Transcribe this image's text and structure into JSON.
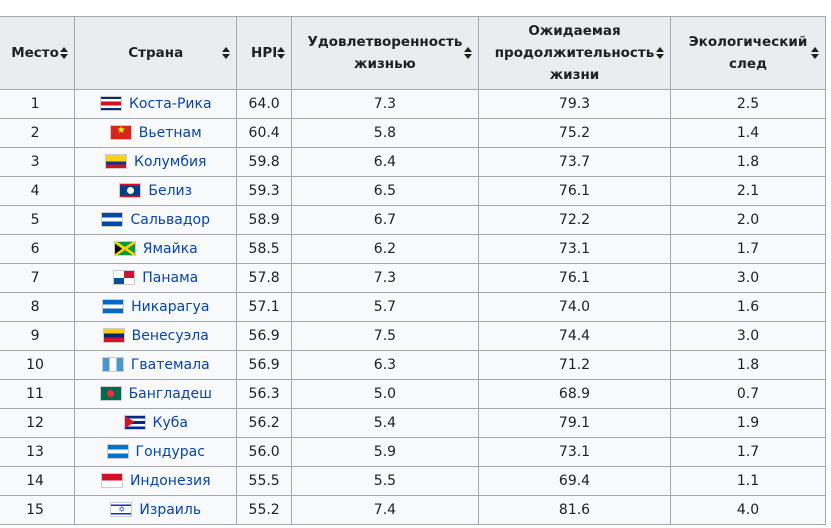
{
  "table": {
    "headers": {
      "rank": "Место",
      "country": "Страна",
      "hpi": "HPI",
      "satisfaction_1": "Удовлетворенность",
      "satisfaction_2": "жизнью",
      "life_exp_1": "Ожидаемая",
      "life_exp_2": "продолжительность",
      "life_exp_3": "жизни",
      "footprint_1": "Экологический",
      "footprint_2": "след"
    },
    "rows": [
      {
        "rank": "1",
        "flag": "costa-rica-flag-icon",
        "country": "Коста-Рика",
        "hpi": "64.0",
        "satisfaction": "7.3",
        "life_expectancy": "79.3",
        "footprint": "2.5"
      },
      {
        "rank": "2",
        "flag": "vietnam-flag-icon",
        "country": "Вьетнам",
        "hpi": "60.4",
        "satisfaction": "5.8",
        "life_expectancy": "75.2",
        "footprint": "1.4"
      },
      {
        "rank": "3",
        "flag": "colombia-flag-icon",
        "country": "Колумбия",
        "hpi": "59.8",
        "satisfaction": "6.4",
        "life_expectancy": "73.7",
        "footprint": "1.8"
      },
      {
        "rank": "4",
        "flag": "belize-flag-icon",
        "country": "Белиз",
        "hpi": "59.3",
        "satisfaction": "6.5",
        "life_expectancy": "76.1",
        "footprint": "2.1"
      },
      {
        "rank": "5",
        "flag": "el-salvador-flag-icon",
        "country": "Сальвадор",
        "hpi": "58.9",
        "satisfaction": "6.7",
        "life_expectancy": "72.2",
        "footprint": "2.0"
      },
      {
        "rank": "6",
        "flag": "jamaica-flag-icon",
        "country": "Ямайка",
        "hpi": "58.5",
        "satisfaction": "6.2",
        "life_expectancy": "73.1",
        "footprint": "1.7"
      },
      {
        "rank": "7",
        "flag": "panama-flag-icon",
        "country": "Панама",
        "hpi": "57.8",
        "satisfaction": "7.3",
        "life_expectancy": "76.1",
        "footprint": "3.0"
      },
      {
        "rank": "8",
        "flag": "nicaragua-flag-icon",
        "country": "Никарагуа",
        "hpi": "57.1",
        "satisfaction": "5.7",
        "life_expectancy": "74.0",
        "footprint": "1.6"
      },
      {
        "rank": "9",
        "flag": "venezuela-flag-icon",
        "country": "Венесуэла",
        "hpi": "56.9",
        "satisfaction": "7.5",
        "life_expectancy": "74.4",
        "footprint": "3.0"
      },
      {
        "rank": "10",
        "flag": "guatemala-flag-icon",
        "country": "Гватемала",
        "hpi": "56.9",
        "satisfaction": "6.3",
        "life_expectancy": "71.2",
        "footprint": "1.8"
      },
      {
        "rank": "11",
        "flag": "bangladesh-flag-icon",
        "country": "Бангладеш",
        "hpi": "56.3",
        "satisfaction": "5.0",
        "life_expectancy": "68.9",
        "footprint": "0.7"
      },
      {
        "rank": "12",
        "flag": "cuba-flag-icon",
        "country": "Куба",
        "hpi": "56.2",
        "satisfaction": "5.4",
        "life_expectancy": "79.1",
        "footprint": "1.9"
      },
      {
        "rank": "13",
        "flag": "honduras-flag-icon",
        "country": "Гондурас",
        "hpi": "56.0",
        "satisfaction": "5.9",
        "life_expectancy": "73.1",
        "footprint": "1.7"
      },
      {
        "rank": "14",
        "flag": "indonesia-flag-icon",
        "country": "Индонезия",
        "hpi": "55.5",
        "satisfaction": "5.5",
        "life_expectancy": "69.4",
        "footprint": "1.1"
      },
      {
        "rank": "15",
        "flag": "israel-flag-icon",
        "country": "Израиль",
        "hpi": "55.2",
        "satisfaction": "7.4",
        "life_expectancy": "81.6",
        "footprint": "4.0"
      }
    ]
  }
}
